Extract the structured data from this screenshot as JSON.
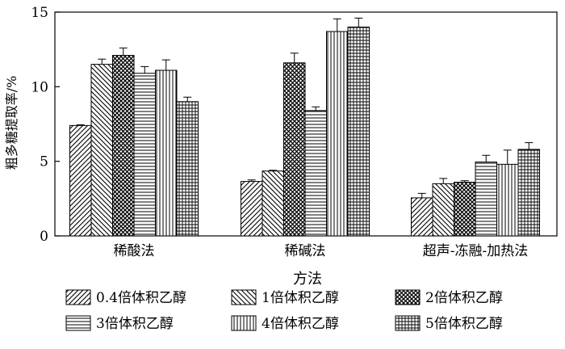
{
  "chart_data": {
    "type": "bar",
    "title": "",
    "xlabel": "方法",
    "ylabel": "粗多糖提取率/%",
    "ylim": [
      0,
      15
    ],
    "yticks": [
      0,
      5,
      10,
      15
    ],
    "categories": [
      "稀酸法",
      "稀碱法",
      "超声-冻融-加热法"
    ],
    "series": [
      {
        "name": "0.4倍体积乙醇",
        "pattern": "diagonal-up",
        "values": [
          7.4,
          3.65,
          2.55
        ],
        "errors": [
          0.05,
          0.1,
          0.3
        ]
      },
      {
        "name": "1倍体积乙醇",
        "pattern": "diagonal-down",
        "values": [
          11.5,
          4.35,
          3.5
        ],
        "errors": [
          0.35,
          0.05,
          0.35
        ]
      },
      {
        "name": "2倍体积乙醇",
        "pattern": "crosshatch",
        "values": [
          12.1,
          11.6,
          3.6
        ],
        "errors": [
          0.5,
          0.65,
          0.1
        ]
      },
      {
        "name": "3倍体积乙醇",
        "pattern": "horizontal",
        "values": [
          10.9,
          8.4,
          4.95
        ],
        "errors": [
          0.45,
          0.25,
          0.45
        ]
      },
      {
        "name": "4倍体积乙醇",
        "pattern": "vertical",
        "values": [
          11.1,
          13.7,
          4.8
        ],
        "errors": [
          0.7,
          0.85,
          0.95
        ]
      },
      {
        "name": "5倍体积乙醇",
        "pattern": "grid",
        "values": [
          9.0,
          14.0,
          5.8
        ],
        "errors": [
          0.3,
          0.6,
          0.45
        ]
      }
    ],
    "legend_position": "bottom",
    "grid": false,
    "colors": {
      "ink": "#000000",
      "background": "#ffffff"
    }
  }
}
